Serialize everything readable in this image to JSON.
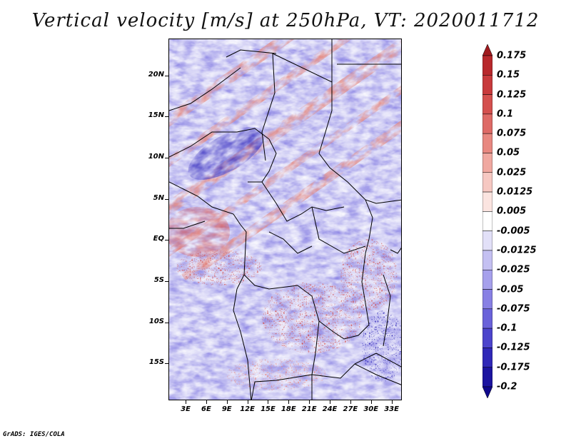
{
  "title": "Vertical velocity [m/s] at 250hPa, VT: 2020011712",
  "credit": "GrADS: IGES/COLA",
  "map": {
    "lat_labels": [
      "20N",
      "15N",
      "10N",
      "5N",
      "EQ",
      "5S",
      "10S",
      "15S"
    ],
    "lat_values": [
      20,
      15,
      10,
      5,
      0,
      -5,
      -10,
      -15
    ],
    "lon_labels": [
      "3E",
      "6E",
      "9E",
      "12E",
      "15E",
      "18E",
      "21E",
      "24E",
      "27E",
      "30E",
      "33E"
    ],
    "lon_values": [
      3,
      6,
      9,
      12,
      15,
      18,
      21,
      24,
      27,
      30,
      33
    ],
    "lat_range": [
      -19.5,
      24.5
    ],
    "lon_range": [
      0.5,
      34.5
    ],
    "field": "vertical velocity",
    "level": "250hPa",
    "units": "m/s"
  },
  "colorbar": {
    "labels": [
      "0.175",
      "0.15",
      "0.125",
      "0.1",
      "0.075",
      "0.05",
      "0.025",
      "0.0125",
      "0.005",
      "-0.005",
      "-0.0125",
      "-0.025",
      "-0.05",
      "-0.075",
      "-0.1",
      "-0.125",
      "-0.175",
      "-0.2"
    ],
    "colors": [
      "#a01a1e",
      "#b8282c",
      "#c83a3c",
      "#d4504e",
      "#de6a66",
      "#e88880",
      "#f0a8a0",
      "#f6c8c2",
      "#fbe4e0",
      "#ffffff",
      "#e2e0f8",
      "#c4c0f2",
      "#a6a0ec",
      "#8880e4",
      "#6a62da",
      "#4c44cc",
      "#3028b8",
      "#1c14a0",
      "#10088c"
    ]
  }
}
